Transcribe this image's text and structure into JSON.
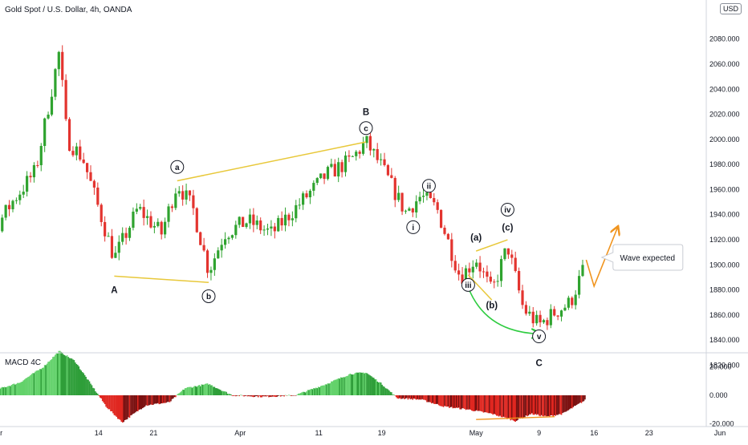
{
  "header": {
    "symbol_title": "Gold Spot / U.S. Dollar, 4h, OANDA",
    "currency": "USD"
  },
  "macd": {
    "label": "MACD 4C"
  },
  "chart_data": [
    {
      "type": "candlestick",
      "title": "Gold Spot / U.S. Dollar, 4h, OANDA",
      "ylim": [
        1815,
        2095
      ],
      "price_axis_ticks": [
        "2080.000",
        "2060.000",
        "2040.000",
        "2020.000",
        "2000.000",
        "1980.000",
        "1960.000",
        "1940.000",
        "1920.000",
        "1900.000",
        "1880.000",
        "1860.000",
        "1840.000",
        "1820.000"
      ],
      "x_tick_labels": [
        "Mar",
        "14",
        "21",
        "Apr",
        "11",
        "19",
        "May",
        "9",
        "16",
        "23",
        "Jun"
      ],
      "colors": {
        "up": "#2fa32f",
        "down": "#e3342f"
      },
      "price_path_keypoints": [
        {
          "date": "2020-02-24",
          "price": 1885
        },
        {
          "date": "2020-02-28",
          "price": 1910
        },
        {
          "date": "2020-03-03",
          "price": 1950
        },
        {
          "date": "2020-03-06",
          "price": 1975
        },
        {
          "date": "2020-03-09",
          "price": 2070
        },
        {
          "date": "2020-03-10",
          "price": 2000
        },
        {
          "date": "2020-03-12",
          "price": 1985
        },
        {
          "date": "2020-03-14",
          "price": 1945
        },
        {
          "date": "2020-03-16",
          "price": 1905
        },
        {
          "date": "2020-03-19",
          "price": 1945
        },
        {
          "date": "2020-03-22",
          "price": 1925
        },
        {
          "date": "2020-03-24",
          "price": 1965
        },
        {
          "date": "2020-03-26",
          "price": 1945
        },
        {
          "date": "2020-03-28",
          "price": 1895
        },
        {
          "date": "2020-03-30",
          "price": 1925
        },
        {
          "date": "2020-04-02",
          "price": 1935
        },
        {
          "date": "2020-04-05",
          "price": 1925
        },
        {
          "date": "2020-04-08",
          "price": 1945
        },
        {
          "date": "2020-04-12",
          "price": 1972
        },
        {
          "date": "2020-04-15",
          "price": 1983
        },
        {
          "date": "2020-04-17",
          "price": 1998
        },
        {
          "date": "2020-04-19",
          "price": 1978
        },
        {
          "date": "2020-04-22",
          "price": 1942
        },
        {
          "date": "2020-04-24",
          "price": 1955
        },
        {
          "date": "2020-04-26",
          "price": 1945
        },
        {
          "date": "2020-04-29",
          "price": 1890
        },
        {
          "date": "2020-05-01",
          "price": 1905
        },
        {
          "date": "2020-05-03",
          "price": 1878
        },
        {
          "date": "2020-05-05",
          "price": 1915
        },
        {
          "date": "2020-05-07",
          "price": 1865
        },
        {
          "date": "2020-05-09",
          "price": 1852
        },
        {
          "date": "2020-05-11",
          "price": 1862
        },
        {
          "date": "2020-05-13",
          "price": 1870
        },
        {
          "date": "2020-05-15",
          "price": 1902
        }
      ],
      "wave_labels": [
        {
          "text": "A",
          "style": "plain",
          "date": "2020-03-16",
          "price": 1880
        },
        {
          "text": "a",
          "style": "circle",
          "date": "2020-03-24",
          "price": 1978
        },
        {
          "text": "b",
          "style": "circle",
          "date": "2020-03-28",
          "price": 1875
        },
        {
          "text": "B",
          "style": "plain",
          "date": "2020-04-17",
          "price": 2022
        },
        {
          "text": "c",
          "style": "circle",
          "date": "2020-04-17",
          "price": 2009
        },
        {
          "text": "i",
          "style": "circle",
          "date": "2020-04-23",
          "price": 1930
        },
        {
          "text": "ii",
          "style": "circle",
          "date": "2020-04-25",
          "price": 1963
        },
        {
          "text": "(a)",
          "style": "plain",
          "date": "2020-05-01",
          "price": 1922
        },
        {
          "text": "iii",
          "style": "circle",
          "date": "2020-04-30",
          "price": 1884
        },
        {
          "text": "(c)",
          "style": "plain",
          "date": "2020-05-05",
          "price": 1930
        },
        {
          "text": "iv",
          "style": "circle",
          "date": "2020-05-05",
          "price": 1944
        },
        {
          "text": "(b)",
          "style": "plain",
          "date": "2020-05-03",
          "price": 1868
        },
        {
          "text": "v",
          "style": "circle",
          "date": "2020-05-09",
          "price": 1843
        },
        {
          "text": "C",
          "style": "plain",
          "date": "2020-05-09",
          "price": 1822
        }
      ],
      "trendlines": [
        {
          "color": "#e8c83a",
          "from": {
            "date": "2020-03-16",
            "price": 1891
          },
          "to": {
            "date": "2020-03-28",
            "price": 1886
          }
        },
        {
          "color": "#e8c83a",
          "from": {
            "date": "2020-03-24",
            "price": 1967
          },
          "to": {
            "date": "2020-04-17",
            "price": 1998
          }
        },
        {
          "color": "#e8c83a",
          "from": {
            "date": "2020-05-01",
            "price": 1911
          },
          "to": {
            "date": "2020-05-05",
            "price": 1920
          }
        },
        {
          "color": "#e8c83a",
          "from": {
            "date": "2020-04-30",
            "price": 1892
          },
          "to": {
            "date": "2020-05-03",
            "price": 1872
          }
        }
      ],
      "arrows": [
        {
          "color": "#2ecc40",
          "curve": true,
          "from": {
            "date": "2020-04-30",
            "price": 1882
          },
          "to": {
            "date": "2020-05-09",
            "price": 1845
          }
        },
        {
          "color": "#f0941e",
          "curve": false,
          "points": [
            {
              "date": "2020-05-15",
              "price": 1904
            },
            {
              "date": "2020-05-16",
              "price": 1883
            },
            {
              "date": "2020-05-19",
              "price": 1930
            }
          ]
        }
      ],
      "callout": {
        "text": "Wave expected",
        "date": "2020-05-18",
        "price": 1906
      }
    },
    {
      "type": "histogram",
      "title": "MACD 4C",
      "ylim": [
        -23,
        31
      ],
      "y_tick_labels": [
        "20.000",
        "0.000",
        "-20.000"
      ],
      "colors": {
        "positive_light": "#63d26b",
        "positive_dark": "#2e9e39",
        "negative_light": "#e02720",
        "negative_dark": "#7a1010"
      },
      "x": [
        "2020-02-24",
        "2020-02-27",
        "2020-03-01",
        "2020-03-04",
        "2020-03-07",
        "2020-03-09",
        "2020-03-11",
        "2020-03-13",
        "2020-03-15",
        "2020-03-17",
        "2020-03-20",
        "2020-03-23",
        "2020-03-25",
        "2020-03-28",
        "2020-03-31",
        "2020-04-04",
        "2020-04-08",
        "2020-04-12",
        "2020-04-15",
        "2020-04-17",
        "2020-04-19",
        "2020-04-21",
        "2020-04-24",
        "2020-04-27",
        "2020-04-30",
        "2020-05-03",
        "2020-05-06",
        "2020-05-08",
        "2020-05-10",
        "2020-05-12",
        "2020-05-15"
      ],
      "values": [
        8,
        0,
        4,
        9,
        20,
        31,
        24,
        8,
        -8,
        -19,
        -7,
        -5,
        5,
        8,
        0,
        -1,
        0,
        8,
        15,
        16,
        8,
        -2,
        -3,
        -8,
        -10,
        -13,
        -18,
        -13,
        -15,
        -13,
        -3
      ],
      "annotations": [
        {
          "type": "trendline",
          "color": "#f0941e",
          "from": {
            "date": "2020-05-01",
            "value": -17
          },
          "to": {
            "date": "2020-05-11",
            "value": -15
          }
        }
      ]
    }
  ]
}
